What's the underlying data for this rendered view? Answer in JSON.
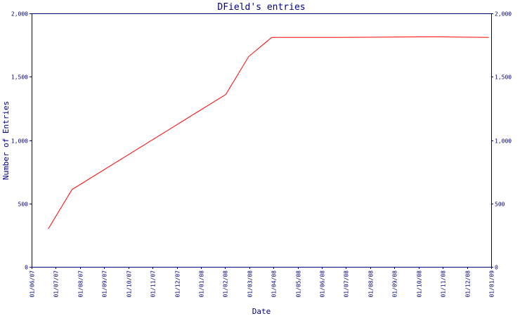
{
  "chart_data": {
    "type": "line",
    "title": "DField's entries",
    "xlabel": "Date",
    "ylabel": "Number of Entries",
    "x_ticks": [
      "01/06/07",
      "01/07/07",
      "01/08/07",
      "01/09/07",
      "01/10/07",
      "01/11/07",
      "01/12/07",
      "01/01/08",
      "01/02/08",
      "01/03/08",
      "01/04/08",
      "01/05/08",
      "01/06/08",
      "01/07/08",
      "01/08/08",
      "01/09/08",
      "01/10/08",
      "01/11/08",
      "01/12/08",
      "01/01/09"
    ],
    "y_ticks": [
      0,
      500,
      1000,
      1500,
      2000
    ],
    "y_tick_labels": [
      "0",
      "500",
      "1,000",
      "1,500",
      "2,000"
    ],
    "ylim": [
      0,
      2000
    ],
    "xlim": [
      "2007-06-01",
      "2009-01-01"
    ],
    "grid": false,
    "right_axis_mirror": true,
    "series": [
      {
        "color": "#ff0000",
        "x": [
          "2007-06-22",
          "2007-07-22",
          "2008-02-01",
          "2008-03-01",
          "2008-03-30",
          "2008-06-20",
          "2008-10-21",
          "2008-12-29"
        ],
        "y": [
          300,
          610,
          1360,
          1660,
          1810,
          1810,
          1815,
          1810
        ]
      }
    ]
  }
}
